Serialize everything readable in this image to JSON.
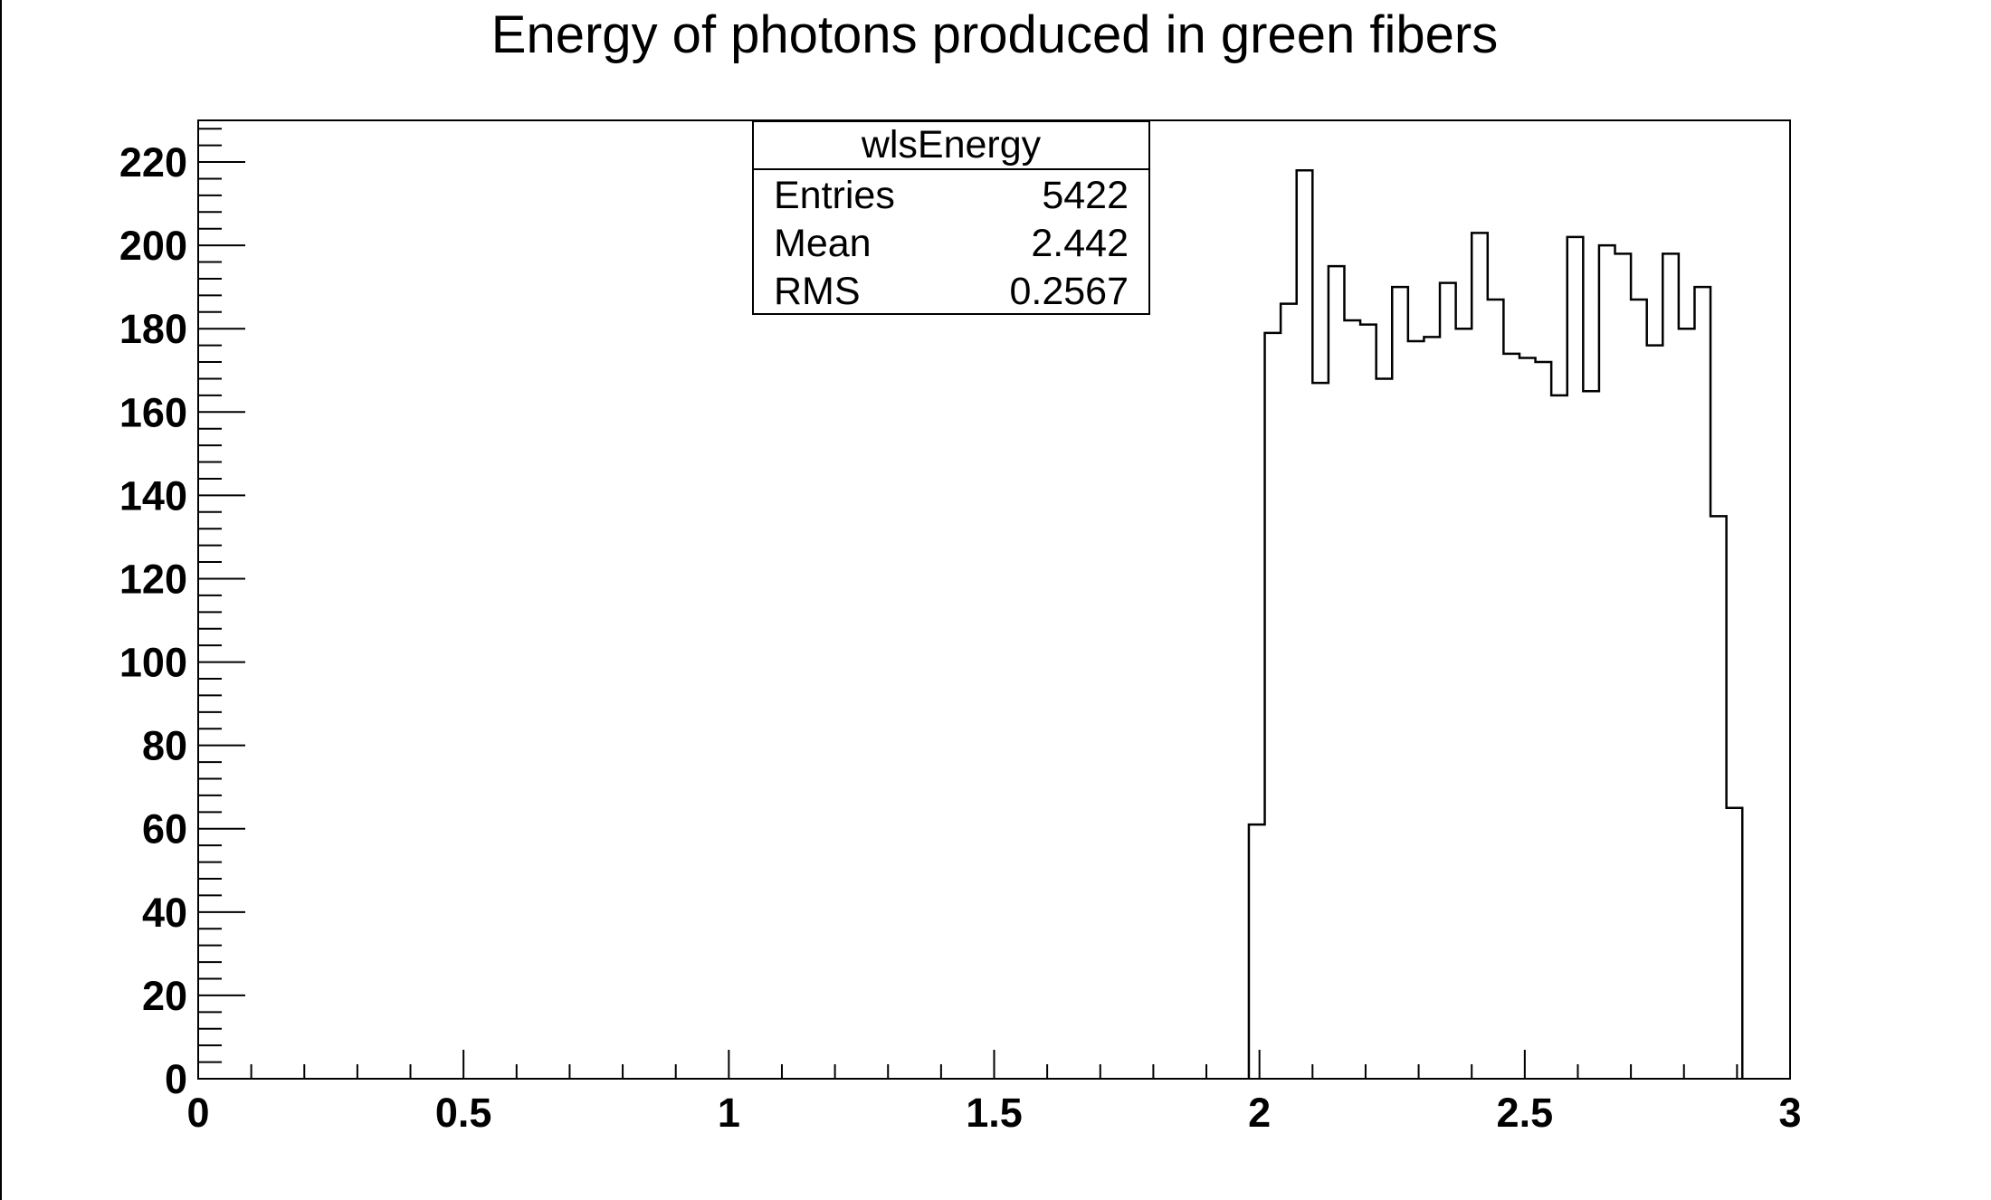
{
  "chart_data": {
    "type": "bar",
    "title": "Energy of photons produced in green fibers",
    "xlabel": "",
    "ylabel": "",
    "xlim": [
      0,
      3
    ],
    "ylim": [
      0,
      230
    ],
    "grid": false,
    "x_ticks": [
      "0",
      "0.5",
      "1",
      "1.5",
      "2",
      "2.5",
      "3"
    ],
    "y_ticks": [
      "0",
      "20",
      "40",
      "60",
      "80",
      "100",
      "120",
      "140",
      "160",
      "180",
      "200",
      "220"
    ],
    "bin_width": 0.03,
    "bin_edges_start": 1.98,
    "values": [
      61,
      179,
      186,
      218,
      167,
      195,
      182,
      181,
      168,
      190,
      177,
      178,
      191,
      180,
      203,
      187,
      174,
      173,
      172,
      164,
      202,
      165,
      200,
      198,
      187,
      176,
      198,
      180,
      190,
      135,
      65
    ],
    "stats_box": {
      "name": "wlsEnergy",
      "rows": [
        {
          "label": "Entries",
          "value": "5422"
        },
        {
          "label": "Mean",
          "value": "2.442"
        },
        {
          "label": "RMS",
          "value": "0.2567"
        }
      ]
    }
  }
}
